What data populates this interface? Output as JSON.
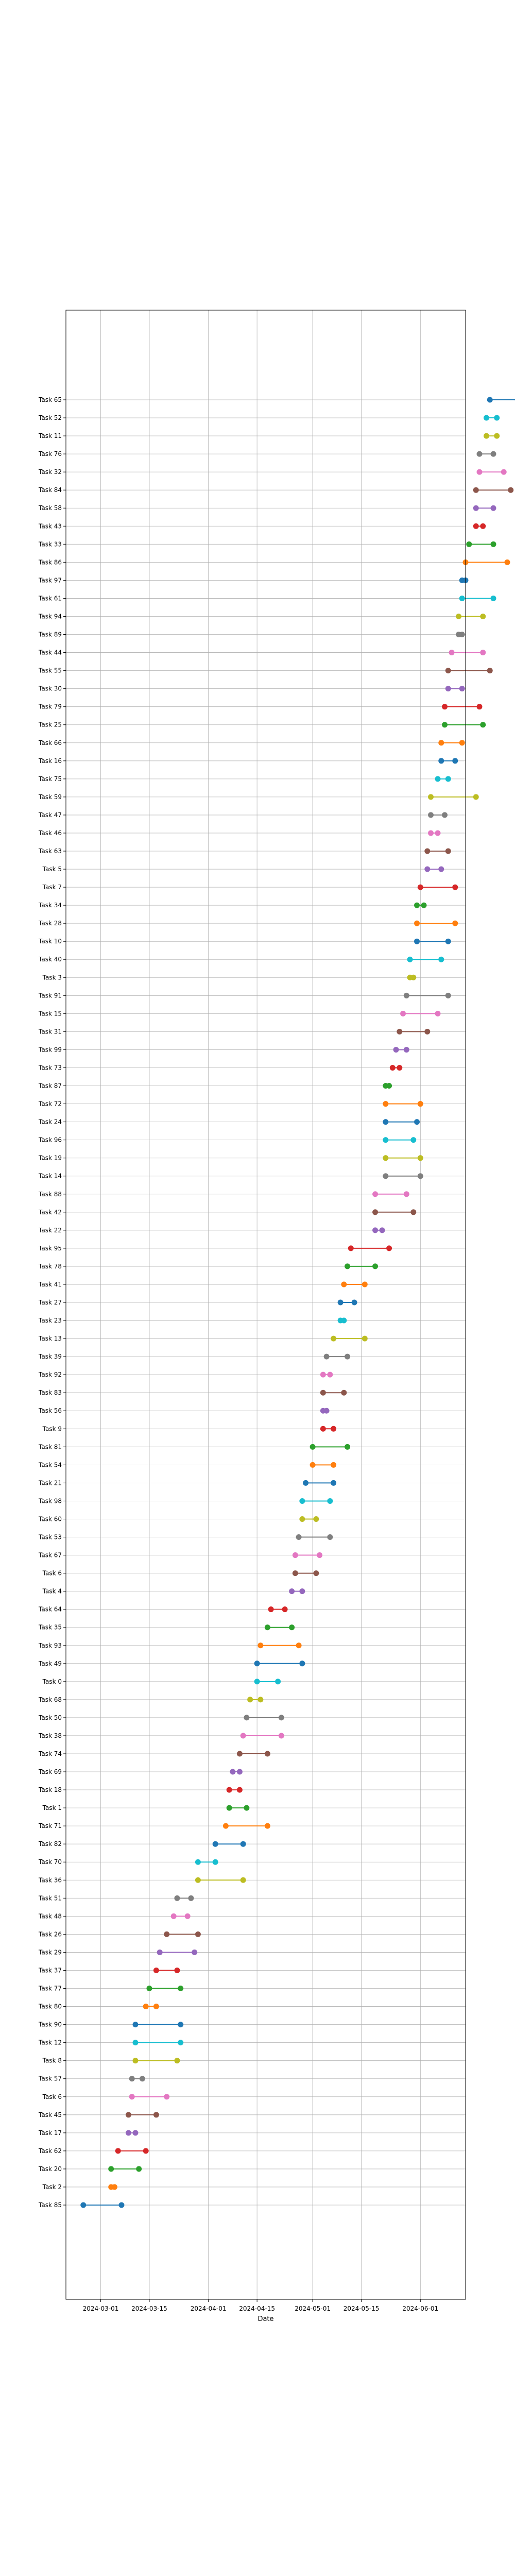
{
  "chart_data": {
    "type": "scatter",
    "style": "dumbbell",
    "title": "",
    "xlabel": "Date",
    "ylabel": "",
    "grid": true,
    "x_axis": {
      "type": "date",
      "range": [
        "2024-02-20",
        "2024-06-14"
      ],
      "ticks": [
        "2024-03-01",
        "2024-03-15",
        "2024-04-01",
        "2024-04-15",
        "2024-05-01",
        "2024-05-15",
        "2024-06-01"
      ]
    },
    "colors": [
      "#1f77b4",
      "#ff7f0e",
      "#2ca02c",
      "#d62728",
      "#9467bd",
      "#8c564b",
      "#e377c2",
      "#7f7f7f",
      "#bcbd22",
      "#17becf"
    ],
    "tasks": [
      {
        "name": "Task 85",
        "start": "2024-02-25",
        "end": "2024-03-07"
      },
      {
        "name": "Task 2",
        "start": "2024-03-04",
        "end": "2024-03-05"
      },
      {
        "name": "Task 20",
        "start": "2024-03-04",
        "end": "2024-03-12"
      },
      {
        "name": "Task 62",
        "start": "2024-03-06",
        "end": "2024-03-14"
      },
      {
        "name": "Task 17",
        "start": "2024-03-09",
        "end": "2024-03-11"
      },
      {
        "name": "Task 45",
        "start": "2024-03-09",
        "end": "2024-03-17"
      },
      {
        "name": "Task 6",
        "start": "2024-03-10",
        "end": "2024-03-20"
      },
      {
        "name": "Task 57",
        "start": "2024-03-10",
        "end": "2024-03-13"
      },
      {
        "name": "Task 8",
        "start": "2024-03-11",
        "end": "2024-03-23"
      },
      {
        "name": "Task 12",
        "start": "2024-03-11",
        "end": "2024-03-24"
      },
      {
        "name": "Task 90",
        "start": "2024-03-11",
        "end": "2024-03-24"
      },
      {
        "name": "Task 80",
        "start": "2024-03-14",
        "end": "2024-03-17"
      },
      {
        "name": "Task 77",
        "start": "2024-03-15",
        "end": "2024-03-24"
      },
      {
        "name": "Task 37",
        "start": "2024-03-17",
        "end": "2024-03-23"
      },
      {
        "name": "Task 29",
        "start": "2024-03-18",
        "end": "2024-03-28"
      },
      {
        "name": "Task 26",
        "start": "2024-03-20",
        "end": "2024-03-29"
      },
      {
        "name": "Task 48",
        "start": "2024-03-22",
        "end": "2024-03-26"
      },
      {
        "name": "Task 51",
        "start": "2024-03-23",
        "end": "2024-03-27"
      },
      {
        "name": "Task 36",
        "start": "2024-03-29",
        "end": "2024-04-11"
      },
      {
        "name": "Task 70",
        "start": "2024-03-29",
        "end": "2024-04-03"
      },
      {
        "name": "Task 82",
        "start": "2024-04-03",
        "end": "2024-04-11"
      },
      {
        "name": "Task 71",
        "start": "2024-04-06",
        "end": "2024-04-18"
      },
      {
        "name": "Task 1",
        "start": "2024-04-07",
        "end": "2024-04-12"
      },
      {
        "name": "Task 18",
        "start": "2024-04-07",
        "end": "2024-04-10"
      },
      {
        "name": "Task 69",
        "start": "2024-04-08",
        "end": "2024-04-10"
      },
      {
        "name": "Task 74",
        "start": "2024-04-10",
        "end": "2024-04-18"
      },
      {
        "name": "Task 38",
        "start": "2024-04-11",
        "end": "2024-04-22"
      },
      {
        "name": "Task 50",
        "start": "2024-04-12",
        "end": "2024-04-22"
      },
      {
        "name": "Task 68",
        "start": "2024-04-13",
        "end": "2024-04-16"
      },
      {
        "name": "Task 0",
        "start": "2024-04-15",
        "end": "2024-04-21"
      },
      {
        "name": "Task 49",
        "start": "2024-04-15",
        "end": "2024-04-28"
      },
      {
        "name": "Task 93",
        "start": "2024-04-16",
        "end": "2024-04-27"
      },
      {
        "name": "Task 35",
        "start": "2024-04-18",
        "end": "2024-04-25"
      },
      {
        "name": "Task 64",
        "start": "2024-04-19",
        "end": "2024-04-23"
      },
      {
        "name": "Task 4",
        "start": "2024-04-25",
        "end": "2024-04-28"
      },
      {
        "name": "Task 6",
        "start": "2024-04-26",
        "end": "2024-05-02"
      },
      {
        "name": "Task 67",
        "start": "2024-04-26",
        "end": "2024-05-03"
      },
      {
        "name": "Task 53",
        "start": "2024-04-27",
        "end": "2024-05-06"
      },
      {
        "name": "Task 60",
        "start": "2024-04-28",
        "end": "2024-05-02"
      },
      {
        "name": "Task 98",
        "start": "2024-04-28",
        "end": "2024-05-06"
      },
      {
        "name": "Task 21",
        "start": "2024-04-29",
        "end": "2024-05-07"
      },
      {
        "name": "Task 54",
        "start": "2024-05-01",
        "end": "2024-05-07"
      },
      {
        "name": "Task 81",
        "start": "2024-05-01",
        "end": "2024-05-11"
      },
      {
        "name": "Task 9",
        "start": "2024-05-04",
        "end": "2024-05-07"
      },
      {
        "name": "Task 56",
        "start": "2024-05-04",
        "end": "2024-05-05"
      },
      {
        "name": "Task 83",
        "start": "2024-05-04",
        "end": "2024-05-10"
      },
      {
        "name": "Task 92",
        "start": "2024-05-04",
        "end": "2024-05-06"
      },
      {
        "name": "Task 39",
        "start": "2024-05-05",
        "end": "2024-05-11"
      },
      {
        "name": "Task 13",
        "start": "2024-05-07",
        "end": "2024-05-16"
      },
      {
        "name": "Task 23",
        "start": "2024-05-09",
        "end": "2024-05-10"
      },
      {
        "name": "Task 27",
        "start": "2024-05-09",
        "end": "2024-05-13"
      },
      {
        "name": "Task 41",
        "start": "2024-05-10",
        "end": "2024-05-16"
      },
      {
        "name": "Task 78",
        "start": "2024-05-11",
        "end": "2024-05-19"
      },
      {
        "name": "Task 95",
        "start": "2024-05-12",
        "end": "2024-05-23"
      },
      {
        "name": "Task 22",
        "start": "2024-05-19",
        "end": "2024-05-21"
      },
      {
        "name": "Task 42",
        "start": "2024-05-19",
        "end": "2024-05-30"
      },
      {
        "name": "Task 88",
        "start": "2024-05-19",
        "end": "2024-05-28"
      },
      {
        "name": "Task 14",
        "start": "2024-05-22",
        "end": "2024-06-01"
      },
      {
        "name": "Task 19",
        "start": "2024-05-22",
        "end": "2024-06-01"
      },
      {
        "name": "Task 96",
        "start": "2024-05-22",
        "end": "2024-05-30"
      },
      {
        "name": "Task 24",
        "start": "2024-05-22",
        "end": "2024-05-31"
      },
      {
        "name": "Task 72",
        "start": "2024-05-22",
        "end": "2024-06-01"
      },
      {
        "name": "Task 87",
        "start": "2024-05-22",
        "end": "2024-05-23"
      },
      {
        "name": "Task 73",
        "start": "2024-05-24",
        "end": "2024-05-26"
      },
      {
        "name": "Task 99",
        "start": "2024-05-25",
        "end": "2024-05-28"
      },
      {
        "name": "Task 31",
        "start": "2024-05-26",
        "end": "2024-06-03"
      },
      {
        "name": "Task 15",
        "start": "2024-05-27",
        "end": "2024-06-06"
      },
      {
        "name": "Task 91",
        "start": "2024-05-28",
        "end": "2024-06-09"
      },
      {
        "name": "Task 3",
        "start": "2024-05-29",
        "end": "2024-05-30"
      },
      {
        "name": "Task 40",
        "start": "2024-05-29",
        "end": "2024-06-07"
      },
      {
        "name": "Task 10",
        "start": "2024-05-31",
        "end": "2024-06-09"
      },
      {
        "name": "Task 28",
        "start": "2024-05-31",
        "end": "2024-06-11"
      },
      {
        "name": "Task 34",
        "start": "2024-05-31",
        "end": "2024-06-02"
      },
      {
        "name": "Task 7",
        "start": "2024-06-01",
        "end": "2024-06-11"
      },
      {
        "name": "Task 5",
        "start": "2024-06-03",
        "end": "2024-06-07"
      },
      {
        "name": "Task 63",
        "start": "2024-06-03",
        "end": "2024-06-09"
      },
      {
        "name": "Task 46",
        "start": "2024-06-04",
        "end": "2024-06-06"
      },
      {
        "name": "Task 47",
        "start": "2024-06-04",
        "end": "2024-06-08"
      },
      {
        "name": "Task 59",
        "start": "2024-06-04",
        "end": "2024-06-17"
      },
      {
        "name": "Task 75",
        "start": "2024-06-06",
        "end": "2024-06-09"
      },
      {
        "name": "Task 16",
        "start": "2024-06-07",
        "end": "2024-06-11"
      },
      {
        "name": "Task 66",
        "start": "2024-06-07",
        "end": "2024-06-13"
      },
      {
        "name": "Task 25",
        "start": "2024-06-08",
        "end": "2024-06-19"
      },
      {
        "name": "Task 79",
        "start": "2024-06-08",
        "end": "2024-06-18"
      },
      {
        "name": "Task 30",
        "start": "2024-06-09",
        "end": "2024-06-13"
      },
      {
        "name": "Task 55",
        "start": "2024-06-09",
        "end": "2024-06-21"
      },
      {
        "name": "Task 44",
        "start": "2024-06-10",
        "end": "2024-06-19"
      },
      {
        "name": "Task 89",
        "start": "2024-06-12",
        "end": "2024-06-13"
      },
      {
        "name": "Task 94",
        "start": "2024-06-12",
        "end": "2024-06-19"
      },
      {
        "name": "Task 61",
        "start": "2024-06-13",
        "end": "2024-06-22"
      },
      {
        "name": "Task 97",
        "start": "2024-06-13",
        "end": "2024-06-14"
      },
      {
        "name": "Task 86",
        "start": "2024-06-14",
        "end": "2024-06-26"
      },
      {
        "name": "Task 33",
        "start": "2024-06-15",
        "end": "2024-06-22"
      },
      {
        "name": "Task 43",
        "start": "2024-06-17",
        "end": "2024-06-19"
      },
      {
        "name": "Task 58",
        "start": "2024-06-17",
        "end": "2024-06-22"
      },
      {
        "name": "Task 84",
        "start": "2024-06-17",
        "end": "2024-06-27"
      },
      {
        "name": "Task 32",
        "start": "2024-06-18",
        "end": "2024-06-25"
      },
      {
        "name": "Task 76",
        "start": "2024-06-18",
        "end": "2024-06-22"
      },
      {
        "name": "Task 11",
        "start": "2024-06-20",
        "end": "2024-06-23"
      },
      {
        "name": "Task 52",
        "start": "2024-06-20",
        "end": "2024-06-23"
      },
      {
        "name": "Task 65",
        "start": "2024-06-21",
        "end": "2024-06-29"
      }
    ]
  }
}
